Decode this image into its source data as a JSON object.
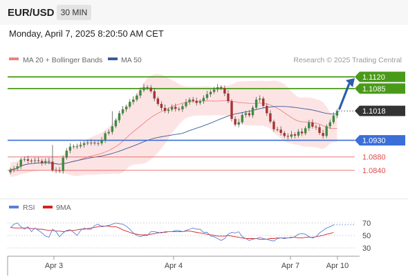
{
  "header": {
    "pair": "EUR/USD",
    "timeframe": "30 MIN",
    "datetime": "Monday, April 7, 2025 8:20:50 AM CET"
  },
  "colors": {
    "bollinger": "#f08080",
    "band_fill": "#fde4e4",
    "ma50": "#3a5a9c",
    "candle_up": "#3d8b3d",
    "candle_down": "#a83232",
    "resistance": "#4a9a1a",
    "support": "#3a6ed8",
    "red_level": "#e04a4a",
    "current": "#333333",
    "arrow": "#2b5fa8",
    "rsi": "#5b7fd6",
    "rsi_ma": "#d62020"
  },
  "chart_data": [
    {
      "type": "candlestick",
      "legend": {
        "bollinger": "MA 20 + Bollinger Bands",
        "ma50": "MA 50"
      },
      "credit": "Research © 2025 Trading Central",
      "x_ticks": [
        "Apr 3",
        "Apr 4",
        "Apr 7",
        "Apr 10"
      ],
      "ylim": [
        1.08,
        1.115
      ],
      "levels": [
        {
          "label": "1.1120",
          "value": 1.112,
          "kind": "resistance"
        },
        {
          "label": "1.1085",
          "value": 1.1085,
          "kind": "resistance"
        },
        {
          "label": "1.1018",
          "value": 1.1018,
          "kind": "current"
        },
        {
          "label": "1.0930",
          "value": 1.093,
          "kind": "support"
        },
        {
          "label": "1.0880",
          "value": 1.088,
          "kind": "red"
        },
        {
          "label": "1.0840",
          "value": 1.084,
          "kind": "red"
        }
      ],
      "close": [
        1.0842,
        1.0845,
        1.0852,
        1.0872,
        1.0873,
        1.0869,
        1.0868,
        1.087,
        1.0868,
        1.0862,
        1.0868,
        1.0866,
        1.0841,
        1.084,
        1.0838,
        1.0878,
        1.0899,
        1.0911,
        1.0912,
        1.0912,
        1.0916,
        1.0921,
        1.0923,
        1.0923,
        1.0921,
        1.0921,
        1.093,
        1.0951,
        1.0955,
        1.0972,
        1.099,
        1.1011,
        1.1023,
        1.1031,
        1.1045,
        1.1052,
        1.1064,
        1.108,
        1.1089,
        1.1088,
        1.1077,
        1.1055,
        1.1039,
        1.1027,
        1.1018,
        1.1022,
        1.103,
        1.1024,
        1.1023,
        1.1032,
        1.1044,
        1.1052,
        1.1048,
        1.1042,
        1.1047,
        1.1057,
        1.1068,
        1.1075,
        1.1082,
        1.1089,
        1.1086,
        1.107,
        1.1047,
        1.0994,
        1.0977,
        1.0984,
        1.1006,
        1.1011,
        1.1005,
        1.1028,
        1.1052,
        1.1055,
        1.1033,
        1.1011,
        1.0986,
        1.0963,
        1.0962,
        1.0952,
        1.0943,
        1.0941,
        1.0948,
        1.0944,
        1.0956,
        1.0951,
        1.0966,
        1.0983,
        1.0971,
        1.0969,
        1.0952,
        1.0943,
        1.0972,
        1.0984,
        1.1004,
        1.1018
      ],
      "rsi": {
        "legend": {
          "rsi": "RSI",
          "ma": "9MA"
        },
        "ylim": [
          20,
          80
        ],
        "ticks": [
          70,
          50,
          30
        ],
        "values": [
          62,
          68,
          70,
          64,
          60,
          64,
          56,
          62,
          58,
          54,
          49,
          47,
          60,
          56,
          48,
          54,
          58,
          59,
          55,
          50,
          58,
          62,
          60,
          60,
          66,
          68,
          64,
          65,
          66,
          68,
          70,
          69,
          68,
          65,
          60,
          54,
          50,
          48,
          50,
          50,
          56,
          56,
          55,
          54,
          56,
          56,
          56,
          58,
          58,
          56,
          58,
          60,
          62,
          60,
          60,
          55,
          55,
          49,
          48,
          45,
          42,
          45,
          52,
          55,
          54,
          56,
          48,
          45,
          42,
          44,
          45,
          47,
          45,
          44,
          42,
          41,
          45,
          46,
          45,
          46,
          46,
          48,
          52,
          53,
          52,
          48,
          46,
          48,
          54,
          58,
          62,
          64,
          67
        ],
        "ma": [
          63,
          62,
          62,
          62,
          62,
          62,
          61,
          61,
          60,
          60,
          59,
          58,
          58,
          57,
          57,
          56,
          57,
          58,
          58,
          59,
          60,
          60,
          61,
          62,
          63,
          64,
          65,
          65,
          65,
          64,
          64,
          62,
          59,
          57,
          55,
          53,
          52,
          51,
          51,
          51,
          52,
          53,
          54,
          55,
          55,
          56,
          56,
          56,
          56,
          56,
          57,
          57,
          56,
          55,
          54,
          53,
          52,
          51,
          50,
          49,
          49,
          49,
          50,
          49,
          48,
          47,
          46,
          45,
          45,
          45,
          45,
          44,
          44,
          44,
          45,
          45,
          46,
          46,
          46,
          46,
          47,
          47,
          46,
          46,
          47,
          47,
          47,
          48,
          49,
          50,
          52,
          53,
          55
        ]
      }
    }
  ]
}
